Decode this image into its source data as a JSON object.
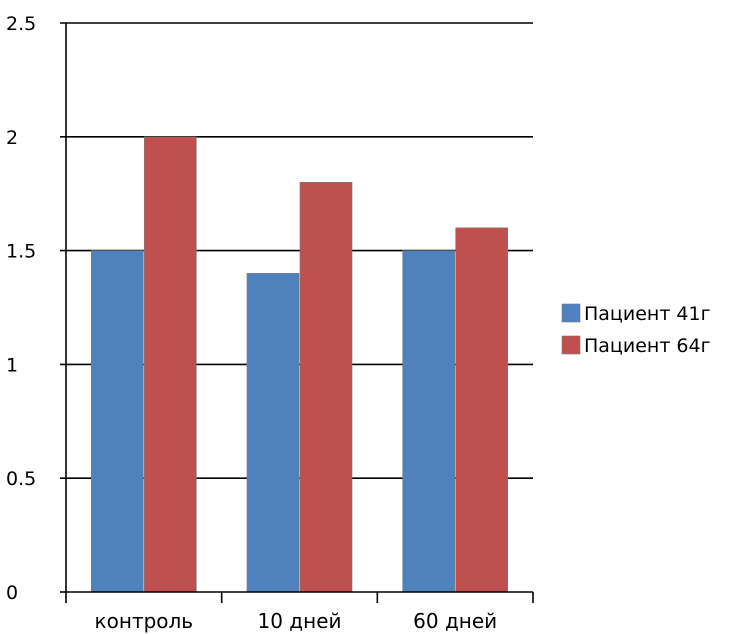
{
  "chart_data": {
    "type": "bar",
    "categories": [
      "контроль",
      "10 дней",
      "60 дней"
    ],
    "series": [
      {
        "name": "Пациент 41г",
        "values": [
          1.5,
          1.4,
          1.5
        ],
        "color": "#4F81BD"
      },
      {
        "name": "Пациент 64г",
        "values": [
          2.0,
          1.8,
          1.6
        ],
        "color": "#C0504D"
      }
    ],
    "yticks": [
      "0",
      "0.5",
      "1",
      "1.5",
      "2",
      "2.5"
    ],
    "ylim": [
      0,
      2.5
    ],
    "grid": true,
    "legend": "right"
  }
}
